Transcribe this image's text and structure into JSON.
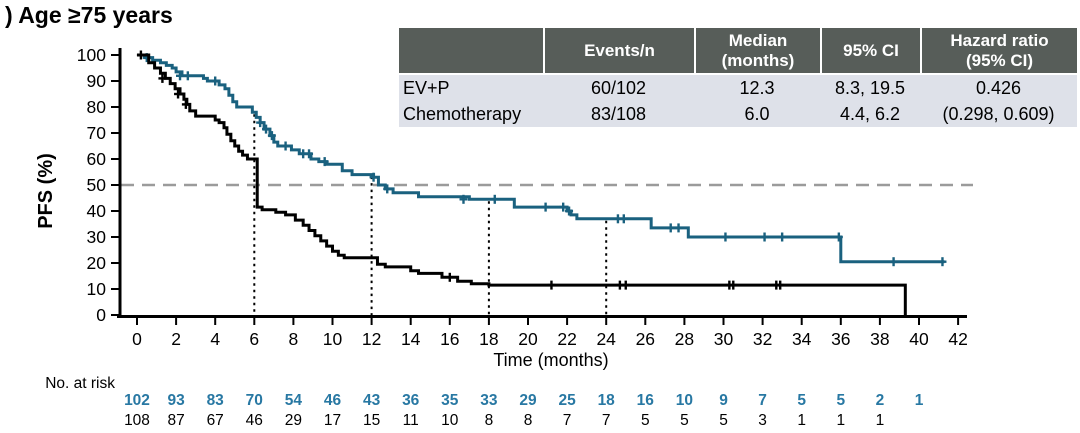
{
  "title": ") Age ≥75 years",
  "colors": {
    "ev_p_curve": "#1A617F",
    "chemo_curve": "#000000",
    "at_risk_blue": "#2878A3",
    "axis_black": "#000000",
    "median_dash_gray": "#9B9B9B",
    "table_header_bg": "#575D59",
    "table_header_text": "#FFFFFF",
    "table_row_bg": "#DEE1E9"
  },
  "stats_table": {
    "headers": [
      "Events/n",
      "Median\n(months)",
      "95% CI",
      "Hazard ratio\n(95% CI)"
    ],
    "rows": [
      {
        "label": "EV+P",
        "events": "60/102",
        "median": "12.3",
        "ci": "8.3, 19.5",
        "hr": "0.426"
      },
      {
        "label": "Chemotherapy",
        "events": "83/108",
        "median": "6.0",
        "ci": "4.4, 6.2",
        "hr": "(0.298, 0.609)"
      }
    ]
  },
  "chart_data": {
    "type": "line",
    "subtype": "kaplan-meier",
    "title": ") Age ≥75 years",
    "xlabel": "Time (months)",
    "ylabel": "PFS (%)",
    "xlim": [
      0,
      42
    ],
    "xtick_step": 2,
    "ylim": [
      0,
      100
    ],
    "ytick_step": 10,
    "grid": false,
    "median_reference_line_y": 50,
    "landmark_times": [
      6,
      12,
      18,
      24
    ],
    "series": [
      {
        "name": "EV+P",
        "color": "#1A617F",
        "steps": [
          [
            0,
            100
          ],
          [
            0.4,
            99
          ],
          [
            0.8,
            98
          ],
          [
            1.2,
            97
          ],
          [
            1.5,
            96
          ],
          [
            1.8,
            95
          ],
          [
            2.0,
            93.5
          ],
          [
            2.3,
            92
          ],
          [
            3.4,
            91
          ],
          [
            3.6,
            90
          ],
          [
            4.2,
            88.5
          ],
          [
            4.5,
            87
          ],
          [
            4.7,
            84.5
          ],
          [
            4.9,
            82
          ],
          [
            5.1,
            80
          ],
          [
            5.9,
            78
          ],
          [
            6.1,
            76
          ],
          [
            6.3,
            74
          ],
          [
            6.5,
            71.5
          ],
          [
            6.8,
            69
          ],
          [
            7.0,
            66.5
          ],
          [
            7.2,
            65
          ],
          [
            7.9,
            63.5
          ],
          [
            8.3,
            62
          ],
          [
            8.9,
            60
          ],
          [
            9.3,
            59
          ],
          [
            9.7,
            58
          ],
          [
            10.5,
            55.5
          ],
          [
            11.0,
            54
          ],
          [
            12.1,
            53
          ],
          [
            12.35,
            50
          ],
          [
            12.7,
            48.5
          ],
          [
            13.1,
            47
          ],
          [
            14.4,
            45.5
          ],
          [
            17.0,
            44.5
          ],
          [
            19.3,
            41.5
          ],
          [
            22.0,
            40
          ],
          [
            22.2,
            38.5
          ],
          [
            22.5,
            37
          ],
          [
            26.3,
            33.5
          ],
          [
            28.2,
            30
          ],
          [
            36.0,
            20.5
          ],
          [
            41.3,
            20.5
          ]
        ],
        "censors": [
          [
            0.5,
            99
          ],
          [
            2.2,
            92
          ],
          [
            2.6,
            92
          ],
          [
            4.0,
            90
          ],
          [
            6.3,
            74
          ],
          [
            6.6,
            71.5
          ],
          [
            6.9,
            69
          ],
          [
            7.6,
            65
          ],
          [
            8.5,
            62
          ],
          [
            8.8,
            62
          ],
          [
            9.6,
            59
          ],
          [
            12.1,
            53
          ],
          [
            12.8,
            48.5
          ],
          [
            16.7,
            44.5
          ],
          [
            18.3,
            44.5
          ],
          [
            20.9,
            41.5
          ],
          [
            21.8,
            41.5
          ],
          [
            22.1,
            40
          ],
          [
            24.6,
            37
          ],
          [
            24.9,
            37
          ],
          [
            27.3,
            33.5
          ],
          [
            27.7,
            33.5
          ],
          [
            30.1,
            30
          ],
          [
            32.1,
            30
          ],
          [
            33.0,
            30
          ],
          [
            35.9,
            30
          ],
          [
            38.7,
            20.5
          ],
          [
            41.2,
            20.5
          ]
        ]
      },
      {
        "name": "Chemotherapy",
        "color": "#000000",
        "steps": [
          [
            0,
            100
          ],
          [
            0.6,
            97
          ],
          [
            0.9,
            95
          ],
          [
            1.2,
            93
          ],
          [
            1.45,
            91
          ],
          [
            1.7,
            89
          ],
          [
            1.95,
            87
          ],
          [
            2.2,
            85
          ],
          [
            2.4,
            83
          ],
          [
            2.55,
            81
          ],
          [
            2.7,
            78.5
          ],
          [
            3.0,
            76.5
          ],
          [
            4.0,
            75
          ],
          [
            4.2,
            74
          ],
          [
            4.45,
            72
          ],
          [
            4.6,
            69.5
          ],
          [
            4.8,
            67
          ],
          [
            5.0,
            65
          ],
          [
            5.2,
            63
          ],
          [
            5.4,
            61.5
          ],
          [
            5.65,
            60
          ],
          [
            6.15,
            41.5
          ],
          [
            6.4,
            40.5
          ],
          [
            7.1,
            39.5
          ],
          [
            7.6,
            38.5
          ],
          [
            8.1,
            36.5
          ],
          [
            8.5,
            34.5
          ],
          [
            8.8,
            32.5
          ],
          [
            9.1,
            30.5
          ],
          [
            9.4,
            28.5
          ],
          [
            9.7,
            26.5
          ],
          [
            10.0,
            24.5
          ],
          [
            10.3,
            23
          ],
          [
            10.6,
            22
          ],
          [
            12.3,
            19.5
          ],
          [
            12.7,
            18.5
          ],
          [
            14.0,
            17
          ],
          [
            14.4,
            16
          ],
          [
            15.6,
            14.5
          ],
          [
            16.4,
            13
          ],
          [
            17.1,
            12
          ],
          [
            18.0,
            11.5
          ],
          [
            39.3,
            0
          ]
        ],
        "censors": [
          [
            0.2,
            100
          ],
          [
            1.3,
            91
          ],
          [
            2.1,
            85
          ],
          [
            2.5,
            81
          ],
          [
            16.0,
            14.5
          ],
          [
            21.2,
            11.5
          ],
          [
            24.7,
            11.5
          ],
          [
            25.0,
            11.5
          ],
          [
            30.3,
            11.5
          ],
          [
            30.5,
            11.5
          ],
          [
            32.7,
            11.5
          ],
          [
            32.9,
            11.5
          ]
        ]
      }
    ],
    "at_risk": {
      "label": "No. at risk",
      "times": [
        0,
        2,
        4,
        6,
        8,
        10,
        12,
        14,
        16,
        18,
        20,
        22,
        24,
        26,
        28,
        30,
        32,
        34,
        36,
        38,
        40
      ],
      "rows": [
        {
          "label": "EV + P",
          "color": "#2878A3",
          "bold": true,
          "values": [
            "102",
            "93",
            "83",
            "70",
            "54",
            "46",
            "43",
            "36",
            "35",
            "33",
            "29",
            "25",
            "18",
            "16",
            "10",
            "9",
            "7",
            "5",
            "5",
            "2",
            "1"
          ]
        },
        {
          "label": "Chemotherapy",
          "color": "#000000",
          "bold": false,
          "values": [
            "108",
            "87",
            "67",
            "46",
            "29",
            "17",
            "15",
            "11",
            "10",
            "8",
            "8",
            "7",
            "7",
            "5",
            "5",
            "5",
            "3",
            "1",
            "1",
            "1"
          ]
        }
      ]
    }
  }
}
